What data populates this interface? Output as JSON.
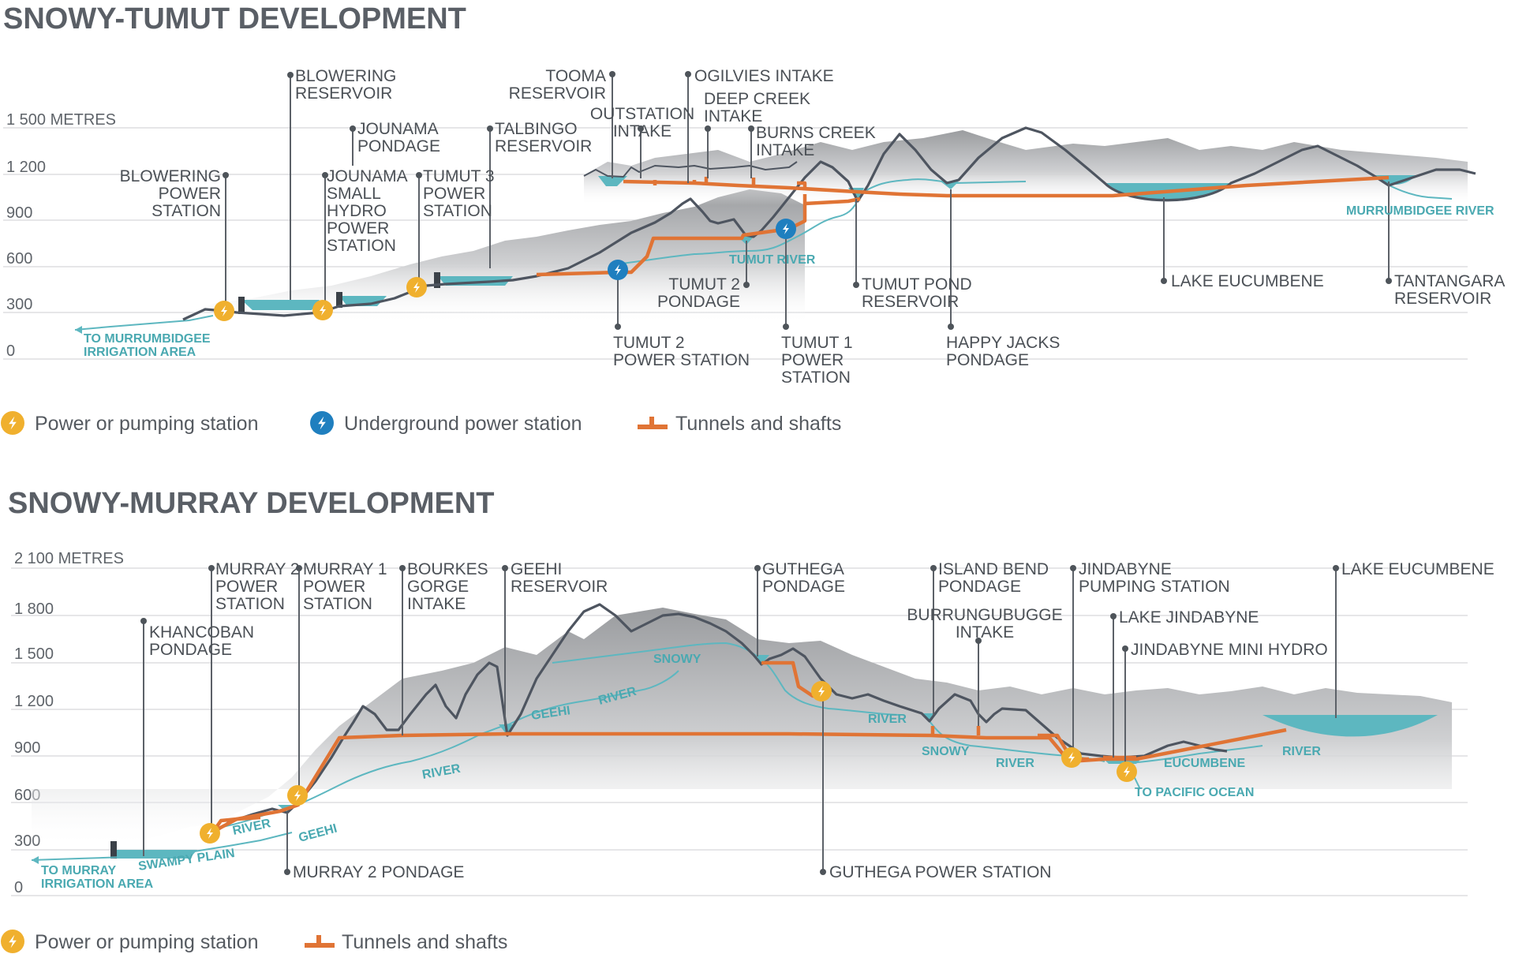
{
  "tumut": {
    "title": "SNOWY-TUMUT DEVELOPMENT",
    "axis": [
      "1 500 METRES",
      "1 200",
      "900",
      "600",
      "300",
      "0"
    ],
    "labels": {
      "blowering_res": [
        "BLOWERING",
        "RESERVOIR"
      ],
      "blowering_ps": [
        "BLOWERING",
        "POWER",
        "STATION"
      ],
      "jounama_pond": [
        "JOUNAMA",
        "PONDAGE"
      ],
      "jounama_hydro": [
        "JOUNAMA",
        "SMALL",
        "HYDRO",
        "POWER",
        "STATION"
      ],
      "tumut3": [
        "TUMUT 3",
        "POWER",
        "STATION"
      ],
      "talbingo": [
        "TALBINGO",
        "RESERVOIR"
      ],
      "tooma": [
        "TOOMA",
        "RESERVOIR"
      ],
      "outstation": [
        "OUTSTATION",
        "INTAKE"
      ],
      "ogilvies": [
        "OGILVIES INTAKE"
      ],
      "deepcreek": [
        "DEEP CREEK",
        "INTAKE"
      ],
      "burns": [
        "BURNS CREEK",
        "INTAKE"
      ],
      "tumut2_pond": [
        "TUMUT 2",
        "PONDAGE"
      ],
      "tumut2_ps": [
        "TUMUT 2",
        "POWER STATION"
      ],
      "tumut1_ps": [
        "TUMUT 1",
        "POWER",
        "STATION"
      ],
      "tumutpond": [
        "TUMUT POND",
        "RESERVOIR"
      ],
      "happyjacks": [
        "HAPPY JACKS",
        "PONDAGE"
      ],
      "eucumbene": [
        "LAKE EUCUMBENE"
      ],
      "tantangara": [
        "TANTANGARA",
        "RESERVOIR"
      ]
    },
    "rivers": {
      "murrumbidgee_area": [
        "TO MURRUMBIDGEE",
        "IRRIGATION AREA"
      ],
      "tumut_river": "TUMUT RIVER",
      "murrumbidgee_river": "MURRUMBIDGEE RIVER"
    },
    "legend": {
      "power": "Power or pumping station",
      "underground": "Underground power station",
      "tunnels": "Tunnels and shafts"
    }
  },
  "murray": {
    "title": "SNOWY-MURRAY DEVELOPMENT",
    "axis": [
      "2 100 METRES",
      "1 800",
      "1 500",
      "1 200",
      "900",
      "600",
      "300",
      "0"
    ],
    "labels": {
      "khancoban": [
        "KHANCOBAN",
        "PONDAGE"
      ],
      "murray2_ps": [
        "MURRAY 2",
        "POWER",
        "STATION"
      ],
      "murray1_ps": [
        "MURRAY 1",
        "POWER",
        "STATION"
      ],
      "bourkes": [
        "BOURKES",
        "GORGE",
        "INTAKE"
      ],
      "geehi_res": [
        "GEEHI",
        "RESERVOIR"
      ],
      "guthega_pond": [
        "GUTHEGA",
        "PONDAGE"
      ],
      "island_bend": [
        "ISLAND BEND",
        "PONDAGE"
      ],
      "burrungubugge": [
        "BURRUNGUBUGGE",
        "INTAKE"
      ],
      "jindabyne_ps": [
        "JINDABYNE",
        "PUMPING STATION"
      ],
      "lake_jindabyne": [
        "LAKE JINDABYNE"
      ],
      "jindabyne_mini": [
        "JINDABYNE MINI HYDRO"
      ],
      "eucumbene": [
        "LAKE EUCUMBENE"
      ],
      "murray2_pond": [
        "MURRAY 2 PONDAGE"
      ],
      "guthega_ps": [
        "GUTHEGA POWER STATION"
      ]
    },
    "rivers": {
      "murray_area": [
        "TO MURRAY",
        "IRRIGATION AREA"
      ],
      "swampy": "SWAMPY PLAIN",
      "river1": "RIVER",
      "geehi1": "GEEHI",
      "river2": "RIVER",
      "geehi2": "GEEHI",
      "river3": "RIVER",
      "snowy1": "SNOWY",
      "river4": "RIVER",
      "snowy2": "SNOWY",
      "river5": "RIVER",
      "eucumbene": "EUCUMBENE",
      "river6": "RIVER",
      "pacific": "TO PACIFIC OCEAN"
    },
    "legend": {
      "power": "Power or pumping station",
      "tunnels": "Tunnels and shafts"
    }
  },
  "colors": {
    "tunnel": "#e07435",
    "power_station": "#f0b02e",
    "underground_station": "#1f7fbf",
    "water": "#5db7c0",
    "ridge": "#4e5560"
  },
  "icons": [
    "lightning-bolt-icon"
  ]
}
